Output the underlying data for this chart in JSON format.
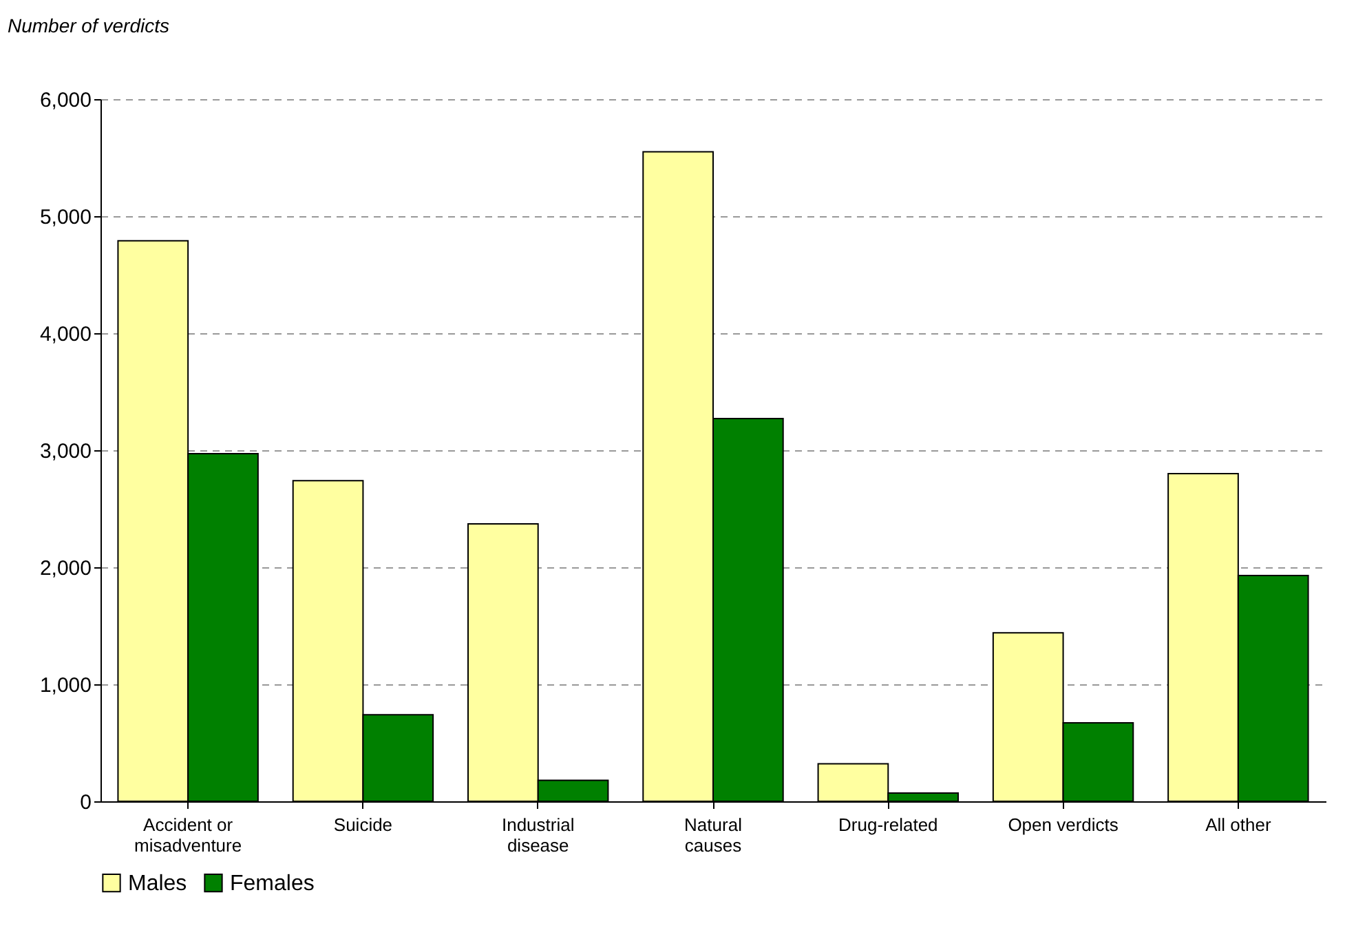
{
  "chart_data": {
    "type": "bar",
    "ylabel": "Number of verdicts",
    "categories": [
      "Accident or misadventure",
      "Suicide",
      "Industrial disease",
      "Natural causes",
      "Drug-related",
      "Open verdicts",
      "All other"
    ],
    "series": [
      {
        "name": "Males",
        "color": "#ffffa0",
        "values": [
          4790,
          2740,
          2370,
          5550,
          320,
          1440,
          2800
        ]
      },
      {
        "name": "Females",
        "color": "#008000",
        "values": [
          2970,
          740,
          180,
          3270,
          70,
          670,
          1930
        ]
      }
    ],
    "ylim": [
      0,
      6000
    ],
    "yticks": [
      {
        "value": 0,
        "label": "0"
      },
      {
        "value": 1000,
        "label": "1,000"
      },
      {
        "value": 2000,
        "label": "2,000"
      },
      {
        "value": 3000,
        "label": "3,000"
      },
      {
        "value": 4000,
        "label": "4,000"
      },
      {
        "value": 5000,
        "label": "5,000"
      },
      {
        "value": 6000,
        "label": "6,000"
      }
    ],
    "grid": "y",
    "legend": "bottom"
  }
}
